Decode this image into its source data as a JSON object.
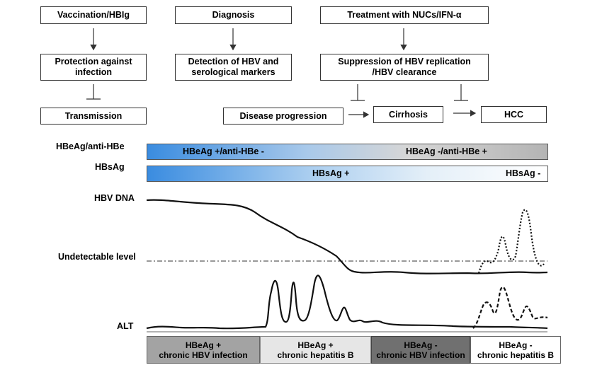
{
  "flow": {
    "vaccination": "Vaccination/HBIg",
    "diagnosis": "Diagnosis",
    "treatment": "Treatment with NUCs/IFN-α",
    "protection": "Protection against\ninfection",
    "detection": "Detection of HBV and\nserological markers",
    "suppression": "Suppression of HBV replication\n/HBV clearance",
    "transmission": "Transmission",
    "disease_progression": "Disease progression",
    "cirrhosis": "Cirrhosis",
    "hcc": "HCC"
  },
  "markers": {
    "hbeag_label": "HBeAg/anti-HBe",
    "hbsag_label": "HBsAg",
    "hbeag_pos": "HBeAg +/anti-HBe -",
    "hbeag_neg": "HBeAg -/anti-HBe +",
    "hbsag_pos": "HBsAg +",
    "hbsag_neg": "HBsAg -"
  },
  "curves": {
    "hbv_dna": "HBV DNA",
    "undetectable": "Undetectable level",
    "alt": "ALT"
  },
  "phases": [
    {
      "label": "HBeAg +\nchronic HBV infection",
      "bg": "#a3a3a3"
    },
    {
      "label": "HBeAg +\nchronic hepatitis B",
      "bg": "#e6e6e6"
    },
    {
      "label": "HBeAg -\nchronic HBV infection",
      "bg": "#707070"
    },
    {
      "label": "HBeAg -\nchronic hepatitis B",
      "bg": "#ffffff"
    }
  ],
  "colors": {
    "blue": "#3a8ce0",
    "grey_end": "#b4b4b4",
    "white_end": "#ffffff"
  }
}
